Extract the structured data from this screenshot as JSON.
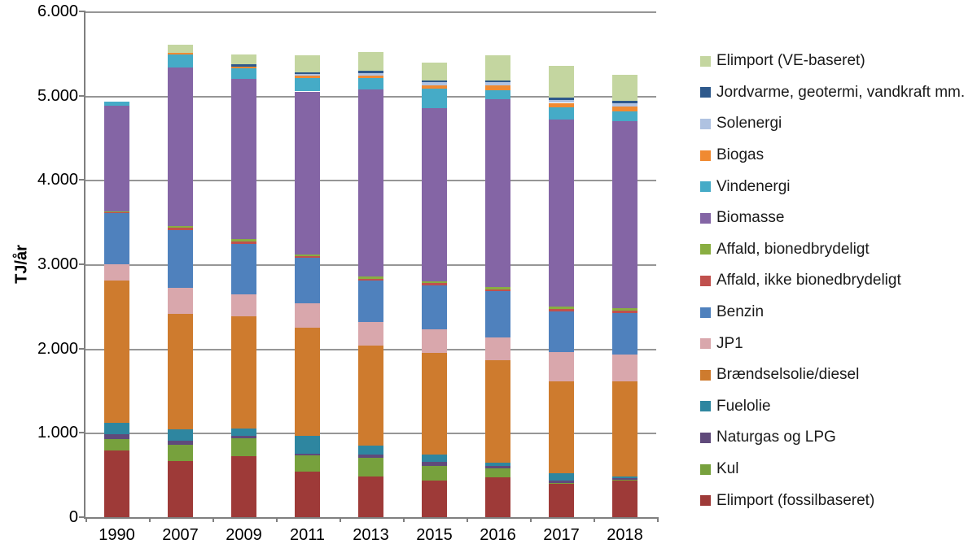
{
  "chart_data": {
    "type": "bar",
    "stacked": true,
    "title": "",
    "ylabel": "TJ/år",
    "xlabel": "",
    "ylim": [
      0,
      6000
    ],
    "grid": true,
    "legend_position": "right",
    "y_ticks": [
      {
        "value": 6000,
        "label": "6.000"
      },
      {
        "value": 5000,
        "label": "5.000"
      },
      {
        "value": 4000,
        "label": "4.000"
      },
      {
        "value": 3000,
        "label": "3.000"
      },
      {
        "value": 2000,
        "label": "2.000"
      },
      {
        "value": 1000,
        "label": "1.000"
      },
      {
        "value": 0,
        "label": "0"
      }
    ],
    "categories": [
      "1990",
      "2007",
      "2009",
      "2011",
      "2013",
      "2015",
      "2016",
      "2017",
      "2018"
    ],
    "series_note": "listed bottom of stack to top; legend shows reverse order",
    "series": [
      {
        "name": "Elimport (fossilbaseret)",
        "color": "#9E3A38",
        "values": [
          790,
          670,
          720,
          540,
          485,
          430,
          470,
          395,
          430
        ]
      },
      {
        "name": "Kul",
        "color": "#77A13D",
        "values": [
          140,
          190,
          215,
          190,
          215,
          180,
          110,
          15,
          10
        ]
      },
      {
        "name": "Naturgas og LPG",
        "color": "#604A7B",
        "values": [
          50,
          50,
          30,
          25,
          40,
          45,
          30,
          25,
          20
        ]
      },
      {
        "name": "Fuelolie",
        "color": "#2E86A0",
        "values": [
          140,
          135,
          90,
          205,
          105,
          85,
          35,
          90,
          25
        ]
      },
      {
        "name": "Brændselsolie/diesel",
        "color": "#CE7B2E",
        "values": [
          1690,
          1365,
          1325,
          1290,
          1195,
          1205,
          1220,
          1090,
          1125
        ]
      },
      {
        "name": "JP1",
        "color": "#D9A7AC",
        "values": [
          190,
          315,
          265,
          285,
          275,
          285,
          265,
          340,
          320
        ]
      },
      {
        "name": "Benzin",
        "color": "#4F81BD",
        "values": [
          605,
          685,
          600,
          540,
          490,
          520,
          550,
          485,
          490
        ]
      },
      {
        "name": "Affald, ikke bionedbrydeligt",
        "color": "#C0504D",
        "values": [
          15,
          20,
          25,
          20,
          25,
          25,
          22,
          30,
          30
        ]
      },
      {
        "name": "Affald, bionedbrydeligt",
        "color": "#89AE41",
        "values": [
          5,
          20,
          25,
          25,
          25,
          25,
          25,
          30,
          25
        ]
      },
      {
        "name": "Biomasse",
        "color": "#8465A5",
        "values": [
          1255,
          1880,
          1905,
          1930,
          2220,
          2050,
          2235,
          2220,
          2220
        ]
      },
      {
        "name": "Vindenergi",
        "color": "#45ABC7",
        "values": [
          45,
          155,
          125,
          160,
          135,
          235,
          105,
          145,
          115
        ]
      },
      {
        "name": "Biogas",
        "color": "#F08A32",
        "values": [
          0,
          25,
          20,
          30,
          30,
          40,
          55,
          50,
          65
        ]
      },
      {
        "name": "Solenergi",
        "color": "#AFC2E1",
        "values": [
          0,
          0,
          0,
          15,
          25,
          40,
          40,
          38,
          38
        ]
      },
      {
        "name": "Jordvarme, geotermi, vandkraft mm.",
        "color": "#2E598C",
        "values": [
          0,
          0,
          25,
          20,
          30,
          15,
          18,
          25,
          26
        ]
      },
      {
        "name": "Elimport (VE-baseret)",
        "color": "#C4D6A0",
        "values": [
          0,
          95,
          115,
          200,
          220,
          215,
          300,
          380,
          312
        ]
      }
    ]
  }
}
